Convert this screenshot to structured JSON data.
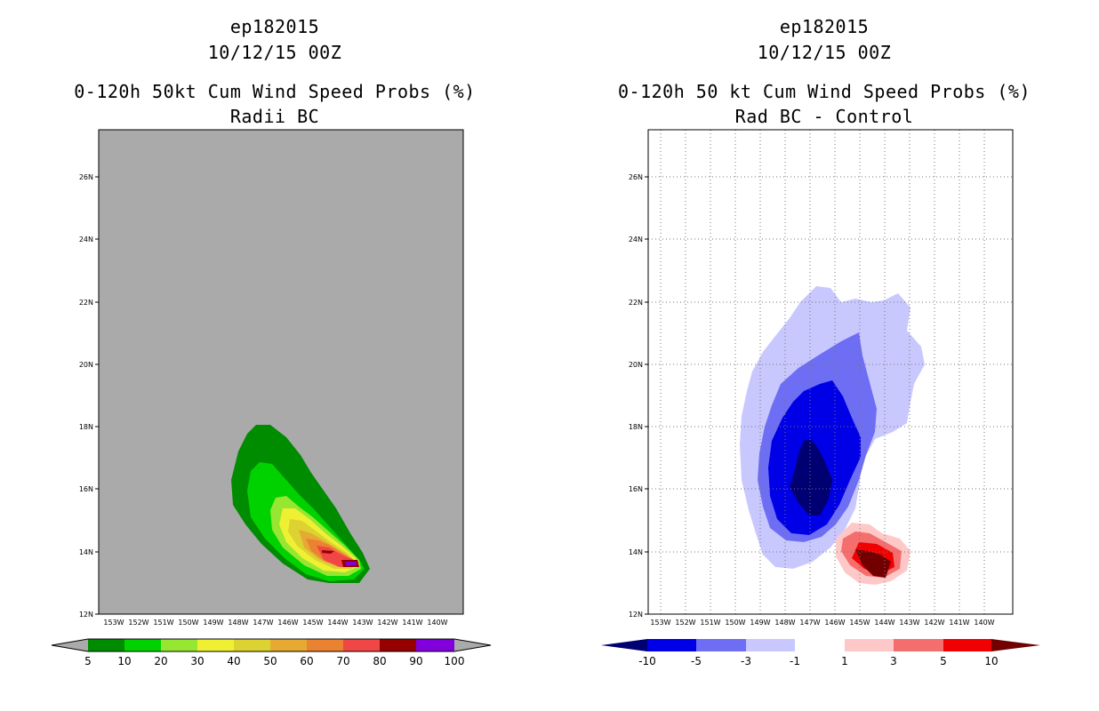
{
  "left": {
    "storm": "ep182015",
    "date": "10/12/15 00Z",
    "product": "0-120h 50kt Cum Wind Speed Probs (%)",
    "subtitle": "Radii BC",
    "colorbar": {
      "labels": [
        "5",
        "10",
        "20",
        "30",
        "40",
        "50",
        "60",
        "70",
        "80",
        "90",
        "100"
      ],
      "colors": [
        "#008c00",
        "#00d200",
        "#96e632",
        "#f0f032",
        "#dcd232",
        "#e6aa32",
        "#eb8232",
        "#f04646",
        "#960000",
        "#8200dc"
      ],
      "below_color": "#aaaaaa",
      "above_color": "#aaaaaa"
    },
    "background": "#aaaaaa"
  },
  "right": {
    "storm": "ep182015",
    "date": "10/12/15 00Z",
    "product": "0-120h 50 kt Cum Wind Speed Probs (%)",
    "subtitle": "Rad BC - Control",
    "colorbar": {
      "labels": [
        "-10",
        "-5",
        "-3",
        "-1",
        "1",
        "3",
        "5",
        "10"
      ],
      "colors": [
        "#0000e6",
        "#6e6ef5",
        "#c8c8ff",
        "#ffffff",
        "#ffc8c8",
        "#f56e6e",
        "#f00000"
      ],
      "below_color": "#000073",
      "above_color": "#730000"
    }
  },
  "axes": {
    "lat_labels": [
      "26N",
      "24N",
      "22N",
      "20N",
      "18N",
      "16N",
      "14N",
      "12N"
    ],
    "lon_labels": [
      "153W",
      "152W",
      "151W",
      "150W",
      "149W",
      "148W",
      "147W",
      "146W",
      "145W",
      "144W",
      "143W",
      "142W",
      "141W",
      "140W"
    ]
  }
}
